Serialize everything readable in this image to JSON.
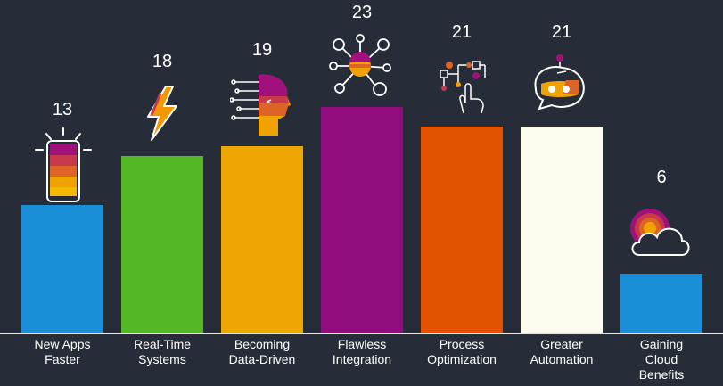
{
  "chart_data": {
    "type": "bar",
    "categories": [
      [
        "New Apps",
        "Faster"
      ],
      [
        "Real-Time",
        "Systems"
      ],
      [
        "Becoming",
        "Data-Driven"
      ],
      [
        "Flawless",
        "Integration"
      ],
      [
        "Process",
        "Optimization"
      ],
      [
        "Greater",
        "Automation"
      ],
      [
        "Gaining",
        "Cloud",
        "Benefits"
      ]
    ],
    "values": [
      13,
      18,
      19,
      23,
      21,
      21,
      6
    ],
    "value_labels": [
      "13",
      "18",
      "19",
      "23",
      "21",
      "21",
      "6"
    ],
    "colors": [
      "#1a8fd8",
      "#52b824",
      "#eea600",
      "#910d7f",
      "#e25200",
      "#fbfbee",
      "#1a8fd8"
    ],
    "icons": [
      "smartphone-icon",
      "lightning-bolt-icon",
      "ai-head-icon",
      "network-nodes-icon",
      "touch-workflow-icon",
      "robot-head-icon",
      "cloud-icon"
    ],
    "ylim": [
      0,
      23
    ],
    "grid": false,
    "legend": "none"
  }
}
